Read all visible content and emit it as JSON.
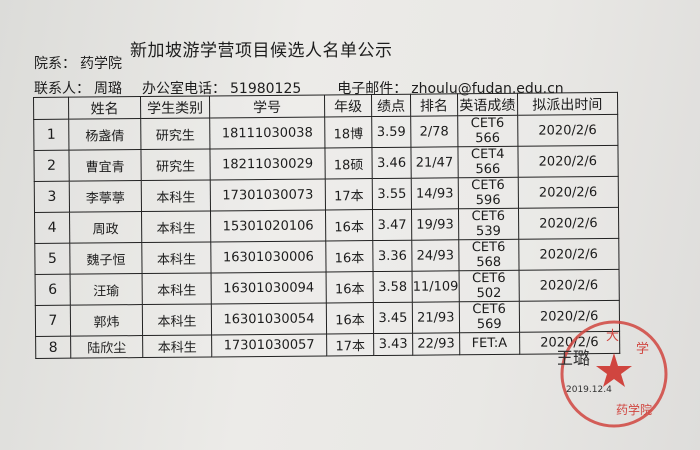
{
  "title": "新加坡游学营项目候选人名单公示",
  "department": {
    "label": "院系：",
    "value": "药学院"
  },
  "contact": {
    "label": "联系人：",
    "name": "周璐",
    "phone_label": "办公室电话：",
    "phone": "51980125",
    "email_label": "电子邮件：",
    "email": "zhoulu@fudan.edu.cn"
  },
  "table": {
    "headers": [
      "",
      "姓名",
      "学生类别",
      "学号",
      "年级",
      "绩点",
      "排名",
      "英语成绩",
      "拟派出时间"
    ],
    "rows": [
      [
        "1",
        "杨盏倩",
        "研究生",
        "18111030038",
        "18博",
        "3.59",
        "2/78",
        "CET6 566",
        "2020/2/6"
      ],
      [
        "2",
        "曹宜青",
        "研究生",
        "18211030029",
        "18硕",
        "3.46",
        "21/47",
        "CET4 566",
        "2020/2/6"
      ],
      [
        "3",
        "李葶葶",
        "本科生",
        "17301030073",
        "17本",
        "3.55",
        "14/93",
        "CET6 596",
        "2020/2/6"
      ],
      [
        "4",
        "周政",
        "本科生",
        "15301020106",
        "16本",
        "3.47",
        "19/93",
        "CET6 539",
        "2020/2/6"
      ],
      [
        "5",
        "魏子恒",
        "本科生",
        "16301030006",
        "16本",
        "3.36",
        "24/93",
        "CET6 568",
        "2020/2/6"
      ],
      [
        "6",
        "汪瑜",
        "本科生",
        "16301030094",
        "16本",
        "3.58",
        "11/109",
        "CET6 502",
        "2020/2/6"
      ],
      [
        "7",
        "郭炜",
        "本科生",
        "16301030054",
        "16本",
        "3.45",
        "21/93",
        "CET6 569",
        "2020/2/6"
      ],
      [
        "8",
        "陆欣尘",
        "本科生",
        "17301030057",
        "17本",
        "3.43",
        "22/93",
        "FET:A",
        "2020/2/6"
      ]
    ]
  },
  "stamp": {
    "text": "大学 药学院",
    "signature": "王璐",
    "date": "2019.12.4",
    "color": "#d0453f"
  }
}
